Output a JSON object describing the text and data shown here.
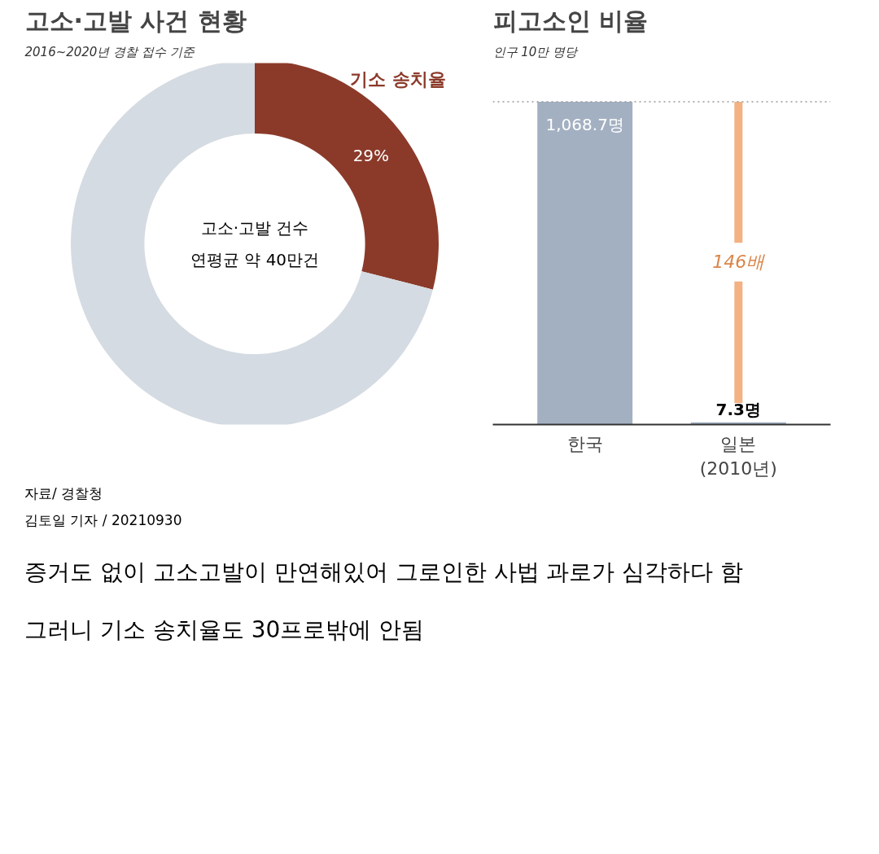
{
  "chart_data": [
    {
      "type": "donut",
      "title": "고소·고발 사건 현황",
      "subtitle": "2016~2020년 경찰 접수 기준",
      "categories": [
        "기소 송치율",
        null
      ],
      "values": [
        29,
        71
      ],
      "colors": [
        "#8b3a2a",
        "#d5dbe2"
      ],
      "value_labels": [
        "29%",
        null
      ],
      "annotations": [
        "고소·고발 건수\n연평균 약 40만건",
        "자료/ 경찰청",
        "김토일 기자 / 20210930",
        "증거도 없이 고소고발이 만연해있어 그로인한 사법 과로가 심각하다 함",
        "그러니 기소 송치율도 30프로밖에 안됨"
      ]
    },
    {
      "type": "bar",
      "title": "피고소인 비율",
      "subtitle": "인구 10만 명당",
      "categories": [
        "한국",
        "일본\n(2010년)"
      ],
      "values": [
        1068.7,
        7.3
      ],
      "colors": [
        "#a3b0c2",
        "#a3b0c2"
      ],
      "value_labels": [
        "1,068.7명",
        "7.3명"
      ],
      "ref_lines": [
        {
          "axis": "y",
          "value": 1068.7,
          "label": null,
          "color": "#999999",
          "line_style": "dotted"
        }
      ],
      "annotations": [
        "146배"
      ]
    }
  ]
}
